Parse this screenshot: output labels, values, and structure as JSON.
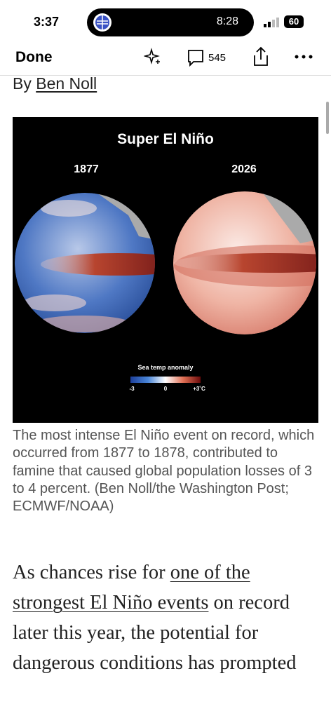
{
  "status_bar": {
    "time": "3:37",
    "island_time": "8:28",
    "battery": "60"
  },
  "toolbar": {
    "done": "Done",
    "comments": "545"
  },
  "byline": {
    "prefix": "By",
    "author": "Ben Noll"
  },
  "figure": {
    "title": "Super El Niño",
    "left_label": "1877",
    "right_label": "2026",
    "legend_title": "Sea temp anomaly",
    "legend_min": "-3",
    "legend_mid": "0",
    "legend_max": "+3˚C"
  },
  "caption": "The most intense El Niño event on record, which occurred from 1877 to 1878, contributed to famine that caused global population losses of 3 to 4 percent. (Ben Noll/the Washington Post; ECMWF/NOAA)",
  "body": {
    "before": "As chances rise for",
    "link": "one of the strongest El Niño events",
    "after": "on record later this year, the potential for dangerous conditions has prompted"
  }
}
